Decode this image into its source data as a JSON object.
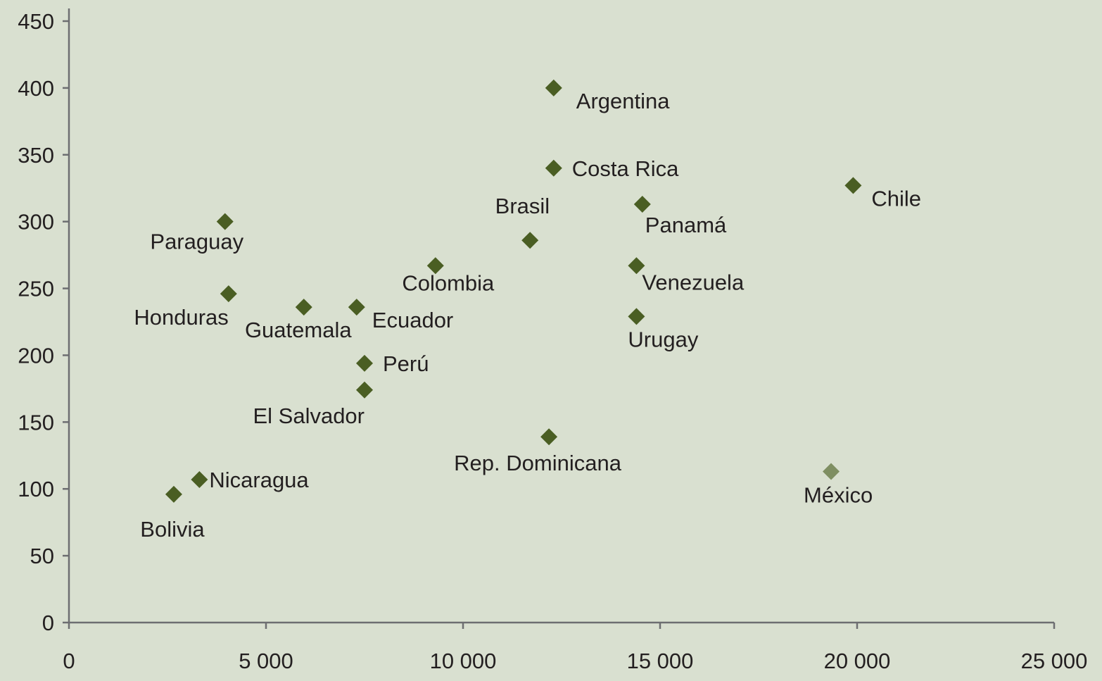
{
  "chart_data": {
    "type": "scatter",
    "title": "",
    "xlabel": "",
    "ylabel": "",
    "xlim": [
      0,
      25000
    ],
    "ylim": [
      0,
      450
    ],
    "x_ticks": [
      {
        "value": 0,
        "label": "0"
      },
      {
        "value": 5000,
        "label": "5 000"
      },
      {
        "value": 10000,
        "label": "10 000"
      },
      {
        "value": 15000,
        "label": "15 000"
      },
      {
        "value": 20000,
        "label": "20 000"
      },
      {
        "value": 25000,
        "label": "25 000"
      }
    ],
    "y_ticks": [
      {
        "value": 0,
        "label": "0"
      },
      {
        "value": 50,
        "label": "50"
      },
      {
        "value": 100,
        "label": "100"
      },
      {
        "value": 150,
        "label": "150"
      },
      {
        "value": 200,
        "label": "200"
      },
      {
        "value": 250,
        "label": "250"
      },
      {
        "value": 300,
        "label": "300"
      },
      {
        "value": 350,
        "label": "350"
      },
      {
        "value": 400,
        "label": "400"
      },
      {
        "value": 450,
        "label": "450"
      }
    ],
    "grid": false,
    "legend": "none",
    "colors": {
      "background": "#d9e0d0",
      "marker": "#4a5e23",
      "marker_highlight": "#7f8f62",
      "axis": "#6d6e71",
      "text": "#231f20"
    },
    "points": [
      {
        "label": "Argentina",
        "x": 12300,
        "y": 400,
        "label_pos": "below-right"
      },
      {
        "label": "Costa Rica",
        "x": 12300,
        "y": 340,
        "label_pos": "right"
      },
      {
        "label": "Chile",
        "x": 19900,
        "y": 327,
        "label_pos": "below-right"
      },
      {
        "label": "Panamá",
        "x": 14550,
        "y": 313,
        "label_pos": "below-right"
      },
      {
        "label": "Paraguay",
        "x": 3960,
        "y": 300,
        "label_pos": "below"
      },
      {
        "label": "Brasil",
        "x": 11700,
        "y": 286,
        "label_pos": "above-left"
      },
      {
        "label": "Colombia",
        "x": 9300,
        "y": 267,
        "label_pos": "below"
      },
      {
        "label": "Venezuela",
        "x": 14400,
        "y": 267,
        "label_pos": "below-right"
      },
      {
        "label": "Honduras",
        "x": 4050,
        "y": 246,
        "label_pos": "below-left"
      },
      {
        "label": "Guatemala",
        "x": 5960,
        "y": 236,
        "label_pos": "below"
      },
      {
        "label": "Ecuador",
        "x": 7300,
        "y": 236,
        "label_pos": "below-right"
      },
      {
        "label": "Urugay",
        "x": 14400,
        "y": 229,
        "label_pos": "below-right"
      },
      {
        "label": "Perú",
        "x": 7500,
        "y": 194,
        "label_pos": "right"
      },
      {
        "label": "El Salvador",
        "x": 7500,
        "y": 174,
        "label_pos": "below-left"
      },
      {
        "label": "Rep. Dominicana",
        "x": 12180,
        "y": 139,
        "label_pos": "below"
      },
      {
        "label": "México",
        "x": 19340,
        "y": 113,
        "label_pos": "below-right",
        "highlight": true
      },
      {
        "label": "Nicaragua",
        "x": 3310,
        "y": 107,
        "label_pos": "right"
      },
      {
        "label": "Bolivia",
        "x": 2660,
        "y": 96,
        "label_pos": "below"
      }
    ]
  }
}
